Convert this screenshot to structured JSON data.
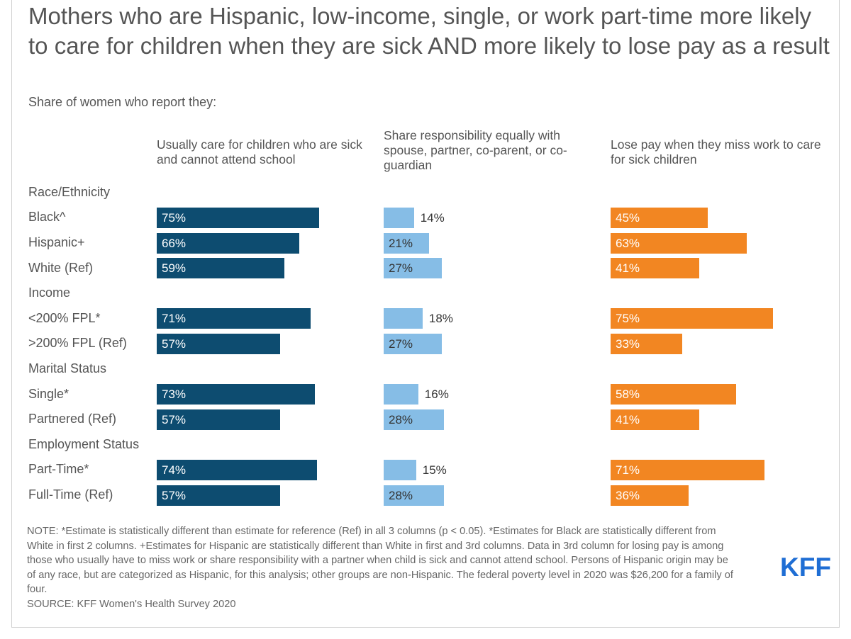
{
  "title": "Mothers who are Hispanic, low-income, single, or work part-time more likely to care for children when they are sick AND more likely to lose pay as a result",
  "subtitle": "Share of women who report they:",
  "colors": {
    "col1": "#0d4c70",
    "col2": "#86bde6",
    "col3": "#f28622",
    "label_on_bar": "#ffffff",
    "label_dark": "#333333"
  },
  "chart_data": {
    "type": "bar",
    "orientation": "horizontal",
    "columns": [
      "Usually care for children who are sick and cannot attend school",
      "Share responsibility equally with spouse, partner, co-parent, or co-guardian",
      "Lose pay when they miss work to care for sick children"
    ],
    "rows": [
      {
        "kind": "group",
        "label": "Race/Ethnicity"
      },
      {
        "kind": "item",
        "label": "Black^",
        "values": [
          75,
          14,
          45
        ]
      },
      {
        "kind": "item",
        "label": "Hispanic+",
        "values": [
          66,
          21,
          63
        ]
      },
      {
        "kind": "item",
        "label": "White (Ref)",
        "values": [
          59,
          27,
          41
        ]
      },
      {
        "kind": "group",
        "label": "Income"
      },
      {
        "kind": "item",
        "label": "<200% FPL*",
        "values": [
          71,
          18,
          75
        ]
      },
      {
        "kind": "item",
        "label": ">200% FPL (Ref)",
        "values": [
          57,
          27,
          33
        ]
      },
      {
        "kind": "group",
        "label": "Marital Status"
      },
      {
        "kind": "item",
        "label": "Single*",
        "values": [
          73,
          16,
          58
        ]
      },
      {
        "kind": "item",
        "label": "Partnered (Ref)",
        "values": [
          57,
          28,
          41
        ]
      },
      {
        "kind": "group",
        "label": "Employment Status"
      },
      {
        "kind": "item",
        "label": "Part-Time*",
        "values": [
          74,
          15,
          71
        ]
      },
      {
        "kind": "item",
        "label": "Full-Time (Ref)",
        "values": [
          57,
          28,
          36
        ]
      }
    ],
    "value_suffix": "%",
    "xlim": [
      0,
      100
    ]
  },
  "notes": [
    "NOTE: *Estimate is statistically different than estimate for reference (Ref) in all 3 columns (p < 0.05). *Estimates for Black are statistically different from White in first 2 columns. +Estimates for Hispanic are statistically different than White in first and 3rd columns. Data in 3rd column for losing pay is among those who usually have to miss work or share responsibility with a partner when child is sick and cannot attend school. Persons of Hispanic origin may be of any race, but are categorized as Hispanic, for this analysis; other groups are non-Hispanic. The federal poverty level in 2020 was $26,200 for a family of four.",
    "SOURCE: KFF Women's Health Survey 2020"
  ],
  "logo": "KFF"
}
